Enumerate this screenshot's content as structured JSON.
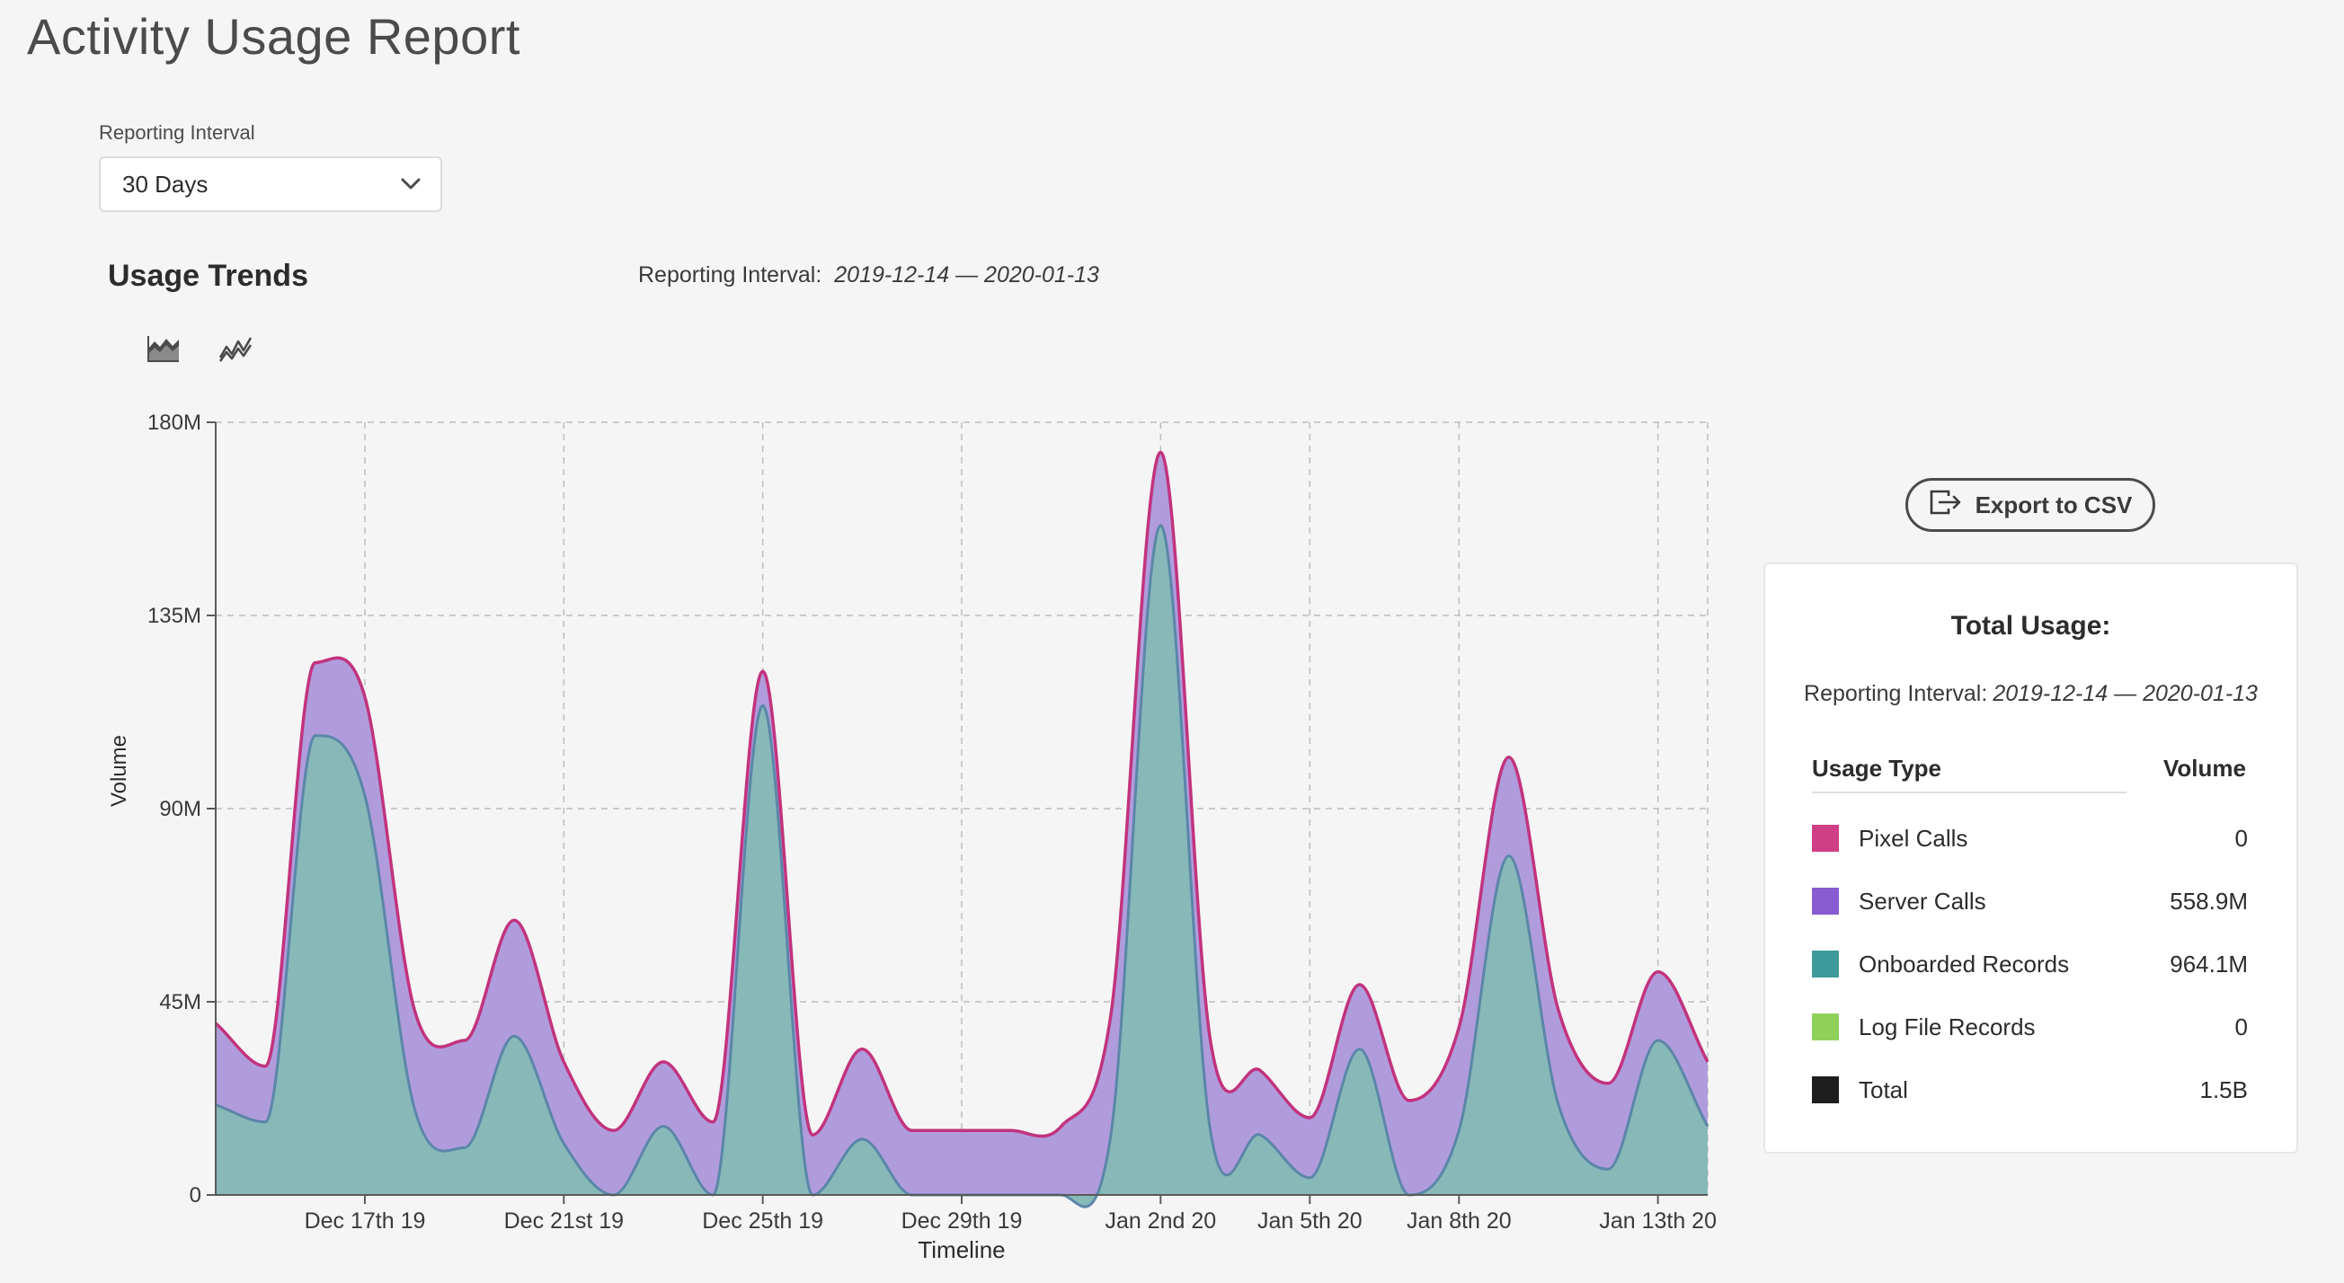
{
  "page": {
    "title": "Activity Usage Report"
  },
  "interval_select": {
    "label": "Reporting Interval",
    "value": "30 Days"
  },
  "trends": {
    "title": "Usage Trends",
    "interval_label": "Reporting Interval:",
    "interval_dates": "2019-12-14 — 2020-01-13",
    "chart_types": [
      "stacked-area-chart-icon",
      "line-chart-icon"
    ]
  },
  "chart_data": {
    "type": "area",
    "stacked": true,
    "xlabel": "Timeline",
    "ylabel": "Volume",
    "ylim": [
      0,
      180
    ],
    "yunit": "M",
    "yticks": [
      {
        "value": 0,
        "label": "0"
      },
      {
        "value": 45,
        "label": "45M"
      },
      {
        "value": 90,
        "label": "90M"
      },
      {
        "value": 135,
        "label": "135M"
      },
      {
        "value": 180,
        "label": "180M"
      }
    ],
    "xlim": [
      14,
      44
    ],
    "xticks": [
      {
        "day": 17,
        "label": "Dec 17th 19"
      },
      {
        "day": 21,
        "label": "Dec 21st 19"
      },
      {
        "day": 25,
        "label": "Dec 25th 19"
      },
      {
        "day": 29,
        "label": "Dec 29th 19"
      },
      {
        "day": 33,
        "label": "Jan 2nd 20"
      },
      {
        "day": 36,
        "label": "Jan 5th 20"
      },
      {
        "day": 39,
        "label": "Jan 8th 20"
      },
      {
        "day": 43,
        "label": "Jan 13th 20"
      }
    ],
    "grid": true,
    "series": [
      {
        "name": "Onboarded Records",
        "color": "#4a9d9c",
        "fill": "#88b9b9",
        "points": [
          [
            14,
            21
          ],
          [
            15,
            17
          ],
          [
            16,
            107
          ],
          [
            17,
            93
          ],
          [
            18,
            20
          ],
          [
            19,
            11
          ],
          [
            20,
            37
          ],
          [
            21,
            12
          ],
          [
            22,
            0
          ],
          [
            23,
            16
          ],
          [
            24,
            0
          ],
          [
            25,
            114
          ],
          [
            26,
            0
          ],
          [
            27,
            13
          ],
          [
            28,
            0
          ],
          [
            29,
            0
          ],
          [
            30,
            0
          ],
          [
            31,
            0
          ],
          [
            32,
            14
          ],
          [
            33,
            156
          ],
          [
            34,
            15
          ],
          [
            35,
            14
          ],
          [
            36,
            4
          ],
          [
            37,
            34
          ],
          [
            38,
            0
          ],
          [
            39,
            15
          ],
          [
            40,
            79
          ],
          [
            41,
            21
          ],
          [
            42,
            6
          ],
          [
            43,
            36
          ],
          [
            44,
            16
          ]
        ]
      },
      {
        "name": "Server Calls",
        "color": "#8a5cd1",
        "fill": "#b09cdd",
        "points": [
          [
            14,
            19
          ],
          [
            15,
            13
          ],
          [
            16,
            17
          ],
          [
            17,
            23
          ],
          [
            18,
            23
          ],
          [
            19,
            25
          ],
          [
            20,
            27
          ],
          [
            21,
            19
          ],
          [
            22,
            15
          ],
          [
            23,
            15
          ],
          [
            24,
            17
          ],
          [
            25,
            8
          ],
          [
            26,
            14
          ],
          [
            27,
            21
          ],
          [
            28,
            15
          ],
          [
            29,
            15
          ],
          [
            30,
            15
          ],
          [
            31,
            16
          ],
          [
            32,
            28
          ],
          [
            33,
            17
          ],
          [
            34,
            21
          ],
          [
            35,
            15
          ],
          [
            36,
            14
          ],
          [
            37,
            15
          ],
          [
            38,
            22
          ],
          [
            39,
            24
          ],
          [
            40,
            23
          ],
          [
            41,
            22
          ],
          [
            42,
            20
          ],
          [
            43,
            16
          ],
          [
            44,
            15
          ]
        ]
      }
    ],
    "totals": [
      {
        "name": "Pixel Calls",
        "color": "#cf3f86",
        "value": "0"
      },
      {
        "name": "Server Calls",
        "color": "#8a5cd1",
        "value": "558.9M"
      },
      {
        "name": "Onboarded Records",
        "color": "#3e9a9b",
        "value": "964.1M"
      },
      {
        "name": "Log File Records",
        "color": "#8fd05a",
        "value": "0"
      },
      {
        "name": "Total",
        "color": "#1e1e1e",
        "value": "1.5B"
      }
    ]
  },
  "export": {
    "label": "Export to CSV"
  },
  "usage_panel": {
    "title": "Total Usage:",
    "interval_label": "Reporting Interval:",
    "interval_dates": "2019-12-14 — 2020-01-13",
    "col_type": "Usage Type",
    "col_volume": "Volume"
  },
  "colors": {
    "pixel_line": "#c2337d",
    "server_fill": "#b09cdd",
    "onboarded_fill": "#88b9b9",
    "onboarded_line": "#5b86a8"
  }
}
